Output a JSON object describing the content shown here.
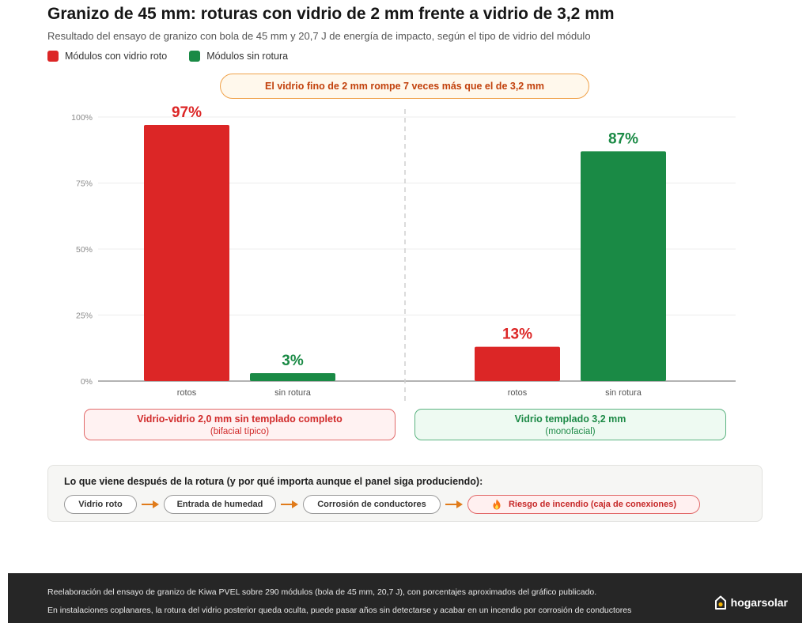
{
  "header": {
    "title": "Granizo de 45 mm: roturas con vidrio de 2 mm frente a vidrio de 3,2 mm",
    "subtitle": "Resultado del ensayo de granizo con bola de 45 mm y 20,7 J de energía de impacto, según el tipo de vidrio del módulo"
  },
  "legend": [
    {
      "label": "Módulos con vidrio roto",
      "color": "#dc2626"
    },
    {
      "label": "Módulos sin rotura",
      "color": "#1a8a45"
    }
  ],
  "callout": "El vidrio fino de 2 mm rompe 7 veces más que el de 3,2 mm",
  "chart_data": {
    "type": "bar",
    "y_ticks": [
      "0%",
      "25%",
      "50%",
      "75%",
      "100%"
    ],
    "ylim": [
      0,
      100
    ],
    "grid": true,
    "groups": [
      {
        "name": "Vidrio-vidrio 2,0 mm sin templado completo",
        "subtitle": "(bifacial típico)",
        "bars": [
          {
            "category": "rotos",
            "value": 97,
            "label": "97%",
            "color": "#dc2626"
          },
          {
            "category": "sin rotura",
            "value": 3,
            "label": "3%",
            "color": "#1a8a45"
          }
        ]
      },
      {
        "name": "Vidrio templado 3,2 mm",
        "subtitle": "(monofacial)",
        "bars": [
          {
            "category": "rotos",
            "value": 13,
            "label": "13%",
            "color": "#dc2626"
          },
          {
            "category": "sin rotura",
            "value": 87,
            "label": "87%",
            "color": "#1a8a45"
          }
        ]
      }
    ]
  },
  "flow": {
    "title": "Lo que viene después de la rotura (y por qué importa aunque el panel siga produciendo):",
    "steps": [
      {
        "label": "Vidrio roto"
      },
      {
        "label": "Entrada de humedad"
      },
      {
        "label": "Corrosión de conductores"
      },
      {
        "label": "Riesgo de incendio (caja de conexiones)",
        "icon": "fire-icon"
      }
    ],
    "arrow_color": "#e07b1a"
  },
  "footer": {
    "note1": "Reelaboración del ensayo de granizo de Kiwa PVEL sobre 290 módulos (bola de 45 mm, 20,7 J), con porcentajes aproximados del gráfico publicado.",
    "note2": "En instalaciones coplanares, la rotura del vidrio posterior queda oculta, puede pasar años sin detectarse y acabar en un incendio por corrosión de conductores",
    "brand": "hogarsolar"
  }
}
